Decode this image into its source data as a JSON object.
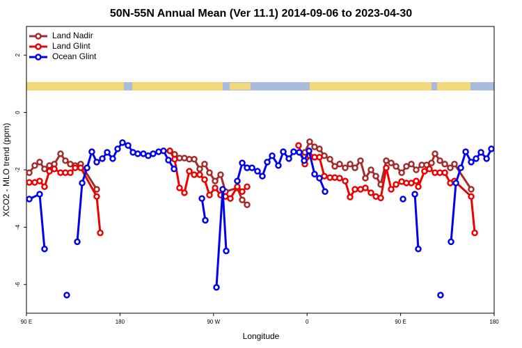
{
  "chart_data": {
    "type": "line",
    "title": "50N-55N Annual Mean (Ver 11.1)   2014-09-06 to 2023-04-30",
    "x_label": "Longitude",
    "y_label": "XCO2 - MLO trend (ppm)",
    "xlim": [
      90,
      540
    ],
    "xticks": [
      {
        "value": 90,
        "label": "90 E"
      },
      {
        "value": 180,
        "label": "180"
      },
      {
        "value": 270,
        "label": "90 W"
      },
      {
        "value": 360,
        "label": "0"
      },
      {
        "value": 450,
        "label": "90 E"
      },
      {
        "value": 540,
        "label": "180"
      }
    ],
    "ylim": [
      -7,
      3
    ],
    "yticks": [
      -6,
      -4,
      -2,
      0,
      2
    ],
    "legend": "top-left",
    "series": [
      {
        "name": "Land Nadir",
        "color": "#a52a2a",
        "x": [
          92.7,
          98.0,
          102.7,
          107.4,
          112.1,
          116.8,
          122.8,
          127.5,
          132.2,
          136.9,
          142.2,
          157.6,
          190,
          228.0,
          232.6,
          237.3,
          242.0,
          246.7,
          251.4,
          256.7,
          261.4,
          266.1,
          271.5,
          276.8,
          281.5,
          292.9,
          297.6,
          302.3,
          330,
          357.9,
          362.5,
          367.2,
          371.9,
          376.6,
          382.0,
          386.7,
          391.3,
          396.7,
          401.4,
          406.1,
          411.4,
          416.1,
          421.5,
          426.2,
          430.9,
          436.2,
          440.9,
          445.6,
          451.0,
          455.6,
          460.3,
          465.0,
          470.4,
          475.0,
          479.7,
          483.1,
          487.8,
          492.5,
          497.8,
          501.8,
          517.9
        ],
        "values": [
          -2.1,
          -1.85,
          -1.73,
          -1.97,
          -1.85,
          -1.8,
          -1.44,
          -1.68,
          -1.8,
          -1.85,
          -1.8,
          -2.68,
          null,
          -1.34,
          -1.46,
          -1.59,
          -1.59,
          -1.63,
          -1.63,
          -1.97,
          -1.8,
          -2.1,
          -2.39,
          -2.17,
          -2.76,
          -2.63,
          -3.05,
          -3.22,
          null,
          -1.39,
          -1.02,
          -1.2,
          -1.27,
          -1.51,
          -1.63,
          -1.88,
          -1.8,
          -1.93,
          -1.8,
          -1.93,
          -1.68,
          -2.29,
          -2.0,
          -2.22,
          -2.51,
          -1.68,
          -1.76,
          -1.88,
          -2.1,
          -1.88,
          -1.8,
          -2.0,
          -1.83,
          -1.83,
          -1.76,
          -1.44,
          -1.68,
          -1.8,
          -1.93,
          -1.8,
          -2.68
        ]
      },
      {
        "name": "Land Glint",
        "color": "#ee0000",
        "x": [
          92.7,
          98.0,
          102.7,
          107.4,
          112.1,
          116.8,
          122.8,
          127.5,
          132.2,
          136.9,
          142.2,
          157.6,
          161.0,
          190,
          228.0,
          232.6,
          237.3,
          242.0,
          246.7,
          251.4,
          256.7,
          261.4,
          266.1,
          271.5,
          276.8,
          281.5,
          286.2,
          292.9,
          297.6,
          302.3,
          330,
          351.8,
          357.9,
          362.5,
          367.2,
          371.9,
          376.6,
          382.0,
          386.7,
          391.3,
          396.7,
          401.4,
          406.1,
          411.4,
          416.1,
          421.5,
          426.2,
          430.9,
          436.2,
          440.9,
          445.6,
          451.0,
          455.6,
          460.3,
          465.0,
          467.0,
          473.0,
          477.7,
          483.1,
          487.8,
          492.5,
          497.8,
          501.8,
          517.9,
          521.3
        ],
        "values": [
          -2.44,
          -2.44,
          -2.39,
          -2.59,
          -2.05,
          -1.97,
          -2.1,
          -2.1,
          -2.1,
          -1.93,
          -1.93,
          -2.93,
          -4.2,
          null,
          -1.34,
          -1.63,
          -2.63,
          -2.8,
          -2.05,
          -2.17,
          -2.17,
          -2.34,
          -2.88,
          -2.63,
          -2.88,
          -2.93,
          -3.0,
          -2.59,
          -2.76,
          -2.59,
          null,
          -1.15,
          -1.8,
          -1.51,
          -1.56,
          -1.56,
          -2.22,
          -2.27,
          -2.27,
          -2.29,
          -2.39,
          -2.95,
          -2.68,
          -2.68,
          -2.63,
          -2.8,
          -2.93,
          -2.98,
          -1.93,
          -2.68,
          -2.51,
          -2.41,
          -2.46,
          -2.46,
          -2.39,
          -2.59,
          -2.05,
          -1.97,
          -2.1,
          -2.1,
          -2.1,
          -2.46,
          -2.39,
          -2.93,
          -4.2
        ]
      },
      {
        "name": "Ocean Glint",
        "color": "#0000ee",
        "x": [
          92.7,
          102.7,
          107.4,
          118,
          128.8,
          133,
          138.9,
          143.6,
          148.3,
          152.9,
          157.6,
          163.0,
          167.7,
          173.0,
          177.7,
          182.4,
          187.8,
          192.5,
          197.1,
          202.5,
          207.2,
          211.9,
          217.2,
          221.9,
          226.6,
          232.0,
          245,
          258.8,
          262.1,
          267,
          272.8,
          278.8,
          282.2,
          287,
          292.9,
          297.6,
          302.3,
          307.0,
          312.3,
          317.0,
          321.7,
          326.4,
          332.4,
          337.1,
          342.5,
          347.1,
          352.5,
          357.2,
          361.9,
          367.2,
          371.9,
          377.3,
          415,
          452.3,
          458,
          463.7,
          467.0,
          478,
          488.4,
          493,
          498.5,
          503.2,
          507.9,
          512.6,
          517.9,
          522.6,
          527.3,
          532.7,
          537.3
        ],
        "values": [
          -3.02,
          -2.85,
          -4.76,
          null,
          -6.37,
          null,
          -4.51,
          -2.46,
          -1.93,
          -1.37,
          -1.73,
          -1.61,
          -1.39,
          -1.61,
          -1.27,
          -1.05,
          -1.15,
          -1.39,
          -1.44,
          -1.44,
          -1.51,
          -1.44,
          -1.37,
          -1.34,
          -1.66,
          -1.97,
          null,
          -3.0,
          -3.76,
          null,
          -6.1,
          -2.68,
          -4.83,
          null,
          -2.39,
          -1.76,
          -1.93,
          -1.93,
          -2.05,
          -2.22,
          -1.73,
          -1.51,
          -1.85,
          -1.37,
          -1.61,
          -1.37,
          -1.39,
          -1.68,
          -1.34,
          -2.15,
          -2.29,
          -2.76,
          null,
          -3.02,
          null,
          -2.85,
          -4.76,
          null,
          -6.37,
          null,
          -4.51,
          -2.46,
          -1.93,
          -1.37,
          -1.73,
          -1.61,
          -1.39,
          -1.61,
          -1.27
        ]
      }
    ]
  }
}
